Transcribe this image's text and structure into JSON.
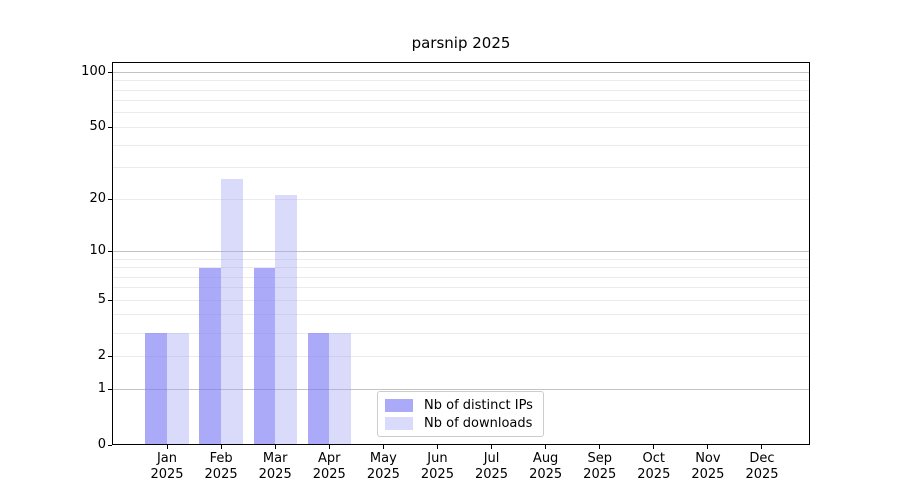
{
  "chart_data": {
    "type": "bar",
    "title": "parsnip 2025",
    "year_label": "2025",
    "categories": [
      "Jan",
      "Feb",
      "Mar",
      "Apr",
      "May",
      "Jun",
      "Jul",
      "Aug",
      "Sep",
      "Oct",
      "Nov",
      "Dec"
    ],
    "series": [
      {
        "name": "Nb of distinct IPs",
        "values": [
          3,
          8,
          8,
          3,
          0,
          0,
          0,
          0,
          0,
          0,
          0,
          0
        ],
        "color": "rgba(120,120,245,0.63)",
        "color_hex_on_white": "#aaaaf8"
      },
      {
        "name": "Nb of downloads",
        "values": [
          3,
          26,
          21,
          3,
          0,
          0,
          0,
          0,
          0,
          0,
          0,
          0
        ],
        "color": "rgba(160,160,245,0.39)",
        "color_hex_on_white": "#dbdbfa"
      }
    ],
    "xlabel": "",
    "ylabel": "",
    "yscale": "log(1+x)",
    "ylim": [
      0,
      114
    ],
    "yticks": [
      0,
      1,
      2,
      5,
      10,
      20,
      50,
      100
    ],
    "major_gridlines": [
      1,
      10,
      100
    ],
    "minor_gridlines": [
      2,
      3,
      4,
      5,
      6,
      7,
      8,
      9,
      20,
      30,
      40,
      50,
      60,
      70,
      80,
      90
    ],
    "grid": true,
    "legend": {
      "position": "lower center"
    },
    "colors": {
      "axis": "#000000",
      "major_grid": "#c3c3c3",
      "minor_grid": "#ebebeb",
      "legend_border": "#cccccc",
      "background": "#ffffff",
      "text": "#000000"
    }
  }
}
